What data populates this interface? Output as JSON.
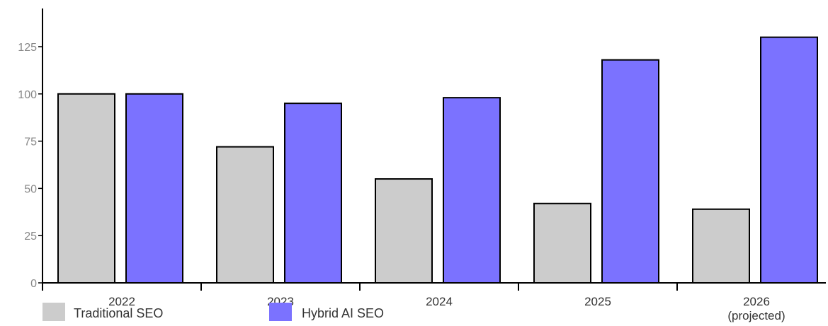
{
  "chart_data": {
    "type": "bar",
    "title": "",
    "xlabel": "",
    "ylabel": "",
    "categories": [
      "2022",
      "2023",
      "2024",
      "2025",
      "2026\n(projected)"
    ],
    "series": [
      {
        "name": "Traditional SEO",
        "values": [
          100,
          72,
          55,
          42,
          39
        ],
        "color": "#cccccc"
      },
      {
        "name": "Hybrid AI SEO",
        "values": [
          100,
          95,
          98,
          118,
          130
        ],
        "color": "#7b72ff"
      }
    ],
    "ylim": [
      0,
      135
    ],
    "yticks": [
      0,
      25,
      50,
      75,
      100,
      125
    ],
    "grid": false,
    "legend_position": "bottom-left",
    "bar_edge_color": "#000000"
  }
}
